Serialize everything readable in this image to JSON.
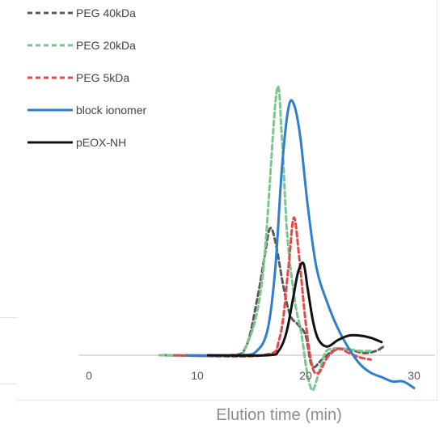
{
  "chart_data": {
    "type": "line",
    "title": "",
    "xlabel": "Elution time (min)",
    "ylabel": "",
    "xlim": [
      -2,
      31
    ],
    "ylim": [
      -0.15,
      1.35
    ],
    "xticks": [
      0,
      10,
      20,
      30
    ],
    "xtick_labels": [
      "0",
      "10",
      "20",
      "30"
    ],
    "grid": false,
    "legend_position": "top-left",
    "series": [
      {
        "name": "PEG 40kDa",
        "color": "#595959",
        "dash": "dashed",
        "x": [
          7,
          13,
          14.5,
          15.5,
          16.2,
          16.7,
          17.2,
          18,
          18.6,
          19.3,
          20.0,
          20.6,
          21.5,
          22.5,
          23.5,
          24.5,
          25.5,
          26.5,
          27.2
        ],
        "y": [
          0,
          0,
          0.04,
          0.25,
          0.45,
          0.58,
          0.52,
          0.3,
          0.18,
          0.14,
          0.09,
          -0.05,
          -0.02,
          0.02,
          0.03,
          0.02,
          0.01,
          0.02,
          0.04
        ]
      },
      {
        "name": "PEG 20kDa",
        "color": "#7ec68f",
        "dash": "dashed",
        "x": [
          6.5,
          13,
          14.5,
          16,
          17.3,
          17.8,
          18.3,
          19,
          19.6,
          20.1,
          20.6,
          21.1,
          21.8,
          22.5,
          23.5,
          25,
          26
        ],
        "y": [
          0,
          0,
          0.04,
          0.35,
          1.2,
          1.0,
          0.55,
          0.25,
          0.1,
          -0.07,
          -0.16,
          -0.1,
          0.01,
          0.03,
          0.03,
          0.02,
          0.02
        ]
      },
      {
        "name": "PEG 5kDa",
        "color": "#e54848",
        "dash": "dashed",
        "x": [
          8,
          16,
          17.6,
          18.4,
          18.9,
          19.4,
          20.0,
          20.6,
          21.2,
          22,
          23,
          24,
          25,
          26
        ],
        "y": [
          0,
          0,
          0.08,
          0.4,
          0.63,
          0.45,
          0.15,
          -0.05,
          -0.08,
          -0.01,
          0.03,
          0.01,
          -0.01,
          -0.02
        ]
      },
      {
        "name": "block ionomer",
        "color": "#2f7fd0",
        "dash": "solid",
        "x": [
          9,
          14,
          15.5,
          16.5,
          17.2,
          17.8,
          18.4,
          18.9,
          19.5,
          20.2,
          21.0,
          22.0,
          23.0,
          24.0,
          25.0,
          26.0,
          27.0,
          28.0,
          29.0,
          30.0
        ],
        "y": [
          0,
          0,
          0.02,
          0.12,
          0.4,
          0.85,
          1.13,
          1.15,
          1.0,
          0.68,
          0.4,
          0.24,
          0.12,
          0.03,
          -0.04,
          -0.08,
          -0.1,
          -0.12,
          -0.12,
          -0.15
        ]
      },
      {
        "name": "pEOX-NH",
        "color": "#111111",
        "dash": "solid",
        "x": [
          11,
          16.5,
          17.5,
          18.2,
          18.8,
          19.3,
          19.8,
          20.2,
          20.7,
          21.2,
          22,
          23,
          24,
          25,
          26,
          27
        ],
        "y": [
          0,
          0,
          0.02,
          0.1,
          0.25,
          0.38,
          0.42,
          0.3,
          0.15,
          0.07,
          0.04,
          0.07,
          0.09,
          0.09,
          0.08,
          0.06
        ]
      }
    ]
  }
}
